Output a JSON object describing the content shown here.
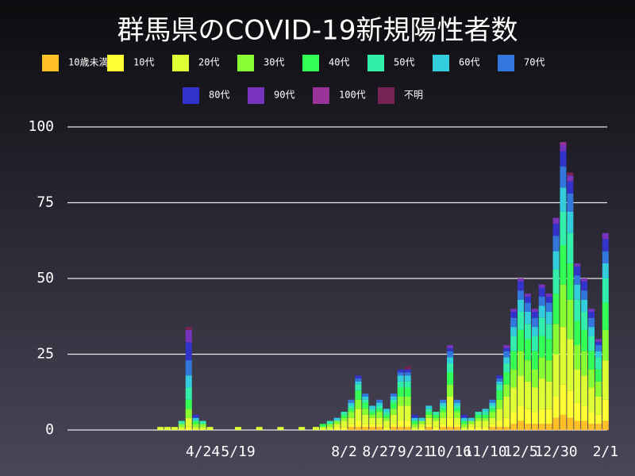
{
  "chart_data": {
    "type": "stacked_bar",
    "title": "群馬県のCOVID-19新規陽性者数",
    "categories": [
      null,
      null,
      null,
      null,
      null,
      null,
      null,
      null,
      null,
      "4/24",
      null,
      null,
      null,
      null,
      "5/19",
      null,
      null,
      null,
      null,
      null,
      null,
      null,
      null,
      null,
      null,
      null,
      null,
      null,
      null,
      "8/2",
      null,
      null,
      null,
      null,
      "8/27",
      null,
      null,
      null,
      null,
      "9/21",
      null,
      null,
      null,
      null,
      "10/16",
      null,
      null,
      null,
      null,
      "11/10",
      null,
      null,
      null,
      null,
      "12/5",
      null,
      null,
      null,
      null,
      "12/30",
      null,
      null,
      null,
      null,
      null,
      null,
      "2/1"
    ],
    "ylim": [
      0,
      100
    ],
    "yticks": [
      0,
      25,
      50,
      75,
      100
    ],
    "grid": true,
    "series": [
      {
        "name": "10歳未満",
        "color": "#ffbf26",
        "values": [
          0,
          0,
          0,
          0,
          0,
          0,
          0,
          0,
          0,
          0,
          0,
          0,
          0,
          0,
          0,
          0,
          0,
          0,
          0,
          0,
          0,
          0,
          0,
          0,
          0,
          0,
          0,
          0,
          0,
          0,
          1,
          1,
          1,
          1,
          1,
          0,
          1,
          1,
          1,
          0,
          0,
          1,
          0,
          1,
          1,
          1,
          0,
          0,
          0,
          0,
          1,
          1,
          1,
          2,
          3,
          2,
          2,
          2,
          2,
          4,
          5,
          4,
          3,
          3,
          2,
          2,
          3
        ]
      },
      {
        "name": "10代",
        "color": "#ffff33",
        "values": [
          0,
          0,
          0,
          0,
          0,
          0,
          0,
          1,
          0,
          0,
          0,
          0,
          0,
          0,
          0,
          0,
          0,
          0,
          0,
          0,
          0,
          0,
          0,
          0,
          0,
          0,
          0,
          0,
          1,
          1,
          1,
          2,
          1,
          1,
          1,
          1,
          1,
          2,
          2,
          0,
          1,
          1,
          1,
          1,
          3,
          1,
          0,
          1,
          1,
          1,
          1,
          2,
          3,
          4,
          5,
          5,
          4,
          5,
          5,
          7,
          10,
          9,
          6,
          5,
          4,
          3,
          7
        ]
      },
      {
        "name": "20代",
        "color": "#ddff33",
        "values": [
          0,
          0,
          0,
          1,
          1,
          1,
          1,
          3,
          1,
          1,
          1,
          0,
          0,
          0,
          1,
          0,
          0,
          1,
          0,
          0,
          1,
          0,
          0,
          1,
          0,
          1,
          1,
          1,
          1,
          2,
          2,
          4,
          3,
          2,
          2,
          2,
          3,
          5,
          5,
          1,
          1,
          2,
          2,
          2,
          7,
          2,
          1,
          1,
          2,
          2,
          2,
          4,
          7,
          8,
          10,
          9,
          8,
          10,
          9,
          14,
          19,
          17,
          11,
          10,
          8,
          6,
          13
        ]
      },
      {
        "name": "30代",
        "color": "#88ff33",
        "values": [
          0,
          0,
          0,
          0,
          0,
          0,
          1,
          3,
          1,
          1,
          0,
          0,
          0,
          0,
          0,
          0,
          0,
          0,
          0,
          0,
          0,
          0,
          0,
          0,
          0,
          0,
          0,
          1,
          1,
          1,
          2,
          3,
          2,
          1,
          2,
          1,
          2,
          3,
          3,
          1,
          1,
          1,
          1,
          2,
          4,
          2,
          1,
          1,
          1,
          1,
          2,
          3,
          4,
          6,
          8,
          7,
          6,
          7,
          7,
          10,
          14,
          13,
          8,
          8,
          6,
          5,
          10
        ]
      },
      {
        "name": "40代",
        "color": "#33ff55",
        "values": [
          0,
          0,
          0,
          0,
          0,
          0,
          0,
          3,
          1,
          0,
          0,
          0,
          0,
          0,
          0,
          0,
          0,
          0,
          0,
          0,
          0,
          0,
          0,
          0,
          0,
          0,
          1,
          0,
          0,
          1,
          1,
          3,
          2,
          1,
          1,
          1,
          2,
          3,
          3,
          1,
          0,
          1,
          1,
          1,
          4,
          1,
          1,
          0,
          1,
          1,
          1,
          3,
          4,
          6,
          7,
          7,
          6,
          7,
          7,
          10,
          13,
          12,
          8,
          7,
          6,
          4,
          9
        ]
      },
      {
        "name": "50代",
        "color": "#33eeaa",
        "values": [
          0,
          0,
          0,
          0,
          0,
          0,
          1,
          4,
          0,
          1,
          0,
          0,
          0,
          0,
          0,
          0,
          0,
          0,
          0,
          0,
          0,
          0,
          0,
          0,
          0,
          0,
          0,
          1,
          0,
          1,
          1,
          2,
          1,
          1,
          1,
          1,
          1,
          2,
          2,
          0,
          0,
          1,
          1,
          1,
          3,
          1,
          0,
          0,
          1,
          1,
          1,
          2,
          3,
          5,
          6,
          5,
          5,
          6,
          5,
          8,
          11,
          10,
          7,
          6,
          5,
          4,
          8
        ]
      },
      {
        "name": "60代",
        "color": "#33ccdd",
        "values": [
          0,
          0,
          0,
          0,
          0,
          0,
          0,
          4,
          1,
          0,
          0,
          0,
          0,
          0,
          0,
          0,
          0,
          0,
          0,
          0,
          0,
          0,
          0,
          0,
          0,
          0,
          0,
          0,
          1,
          0,
          1,
          1,
          1,
          1,
          1,
          1,
          1,
          2,
          2,
          1,
          1,
          1,
          0,
          1,
          2,
          1,
          1,
          1,
          0,
          1,
          1,
          1,
          2,
          3,
          4,
          4,
          3,
          4,
          4,
          6,
          8,
          7,
          5,
          4,
          3,
          2,
          5
        ]
      },
      {
        "name": "70代",
        "color": "#3377dd",
        "values": [
          0,
          0,
          0,
          0,
          0,
          0,
          0,
          5,
          0,
          0,
          0,
          0,
          0,
          0,
          0,
          0,
          0,
          0,
          0,
          0,
          0,
          0,
          0,
          0,
          0,
          0,
          0,
          0,
          0,
          0,
          1,
          1,
          1,
          0,
          1,
          0,
          1,
          1,
          1,
          0,
          0,
          0,
          0,
          1,
          2,
          1,
          0,
          0,
          0,
          0,
          1,
          1,
          2,
          3,
          3,
          3,
          3,
          3,
          3,
          5,
          7,
          6,
          3,
          3,
          3,
          2,
          4
        ]
      },
      {
        "name": "80代",
        "color": "#3333cc",
        "values": [
          0,
          0,
          0,
          0,
          0,
          0,
          0,
          6,
          1,
          0,
          0,
          0,
          0,
          0,
          0,
          0,
          0,
          0,
          0,
          0,
          0,
          0,
          0,
          0,
          0,
          0,
          0,
          0,
          0,
          0,
          0,
          1,
          0,
          0,
          0,
          0,
          0,
          1,
          1,
          1,
          0,
          0,
          0,
          0,
          1,
          0,
          1,
          0,
          0,
          0,
          0,
          1,
          1,
          2,
          3,
          2,
          2,
          3,
          2,
          4,
          5,
          4,
          3,
          3,
          2,
          1,
          4
        ]
      },
      {
        "name": "90代",
        "color": "#7733bb",
        "values": [
          0,
          0,
          0,
          0,
          0,
          0,
          0,
          4,
          0,
          0,
          0,
          0,
          0,
          0,
          0,
          0,
          0,
          0,
          0,
          0,
          0,
          0,
          0,
          0,
          0,
          0,
          0,
          0,
          0,
          0,
          0,
          0,
          0,
          0,
          0,
          0,
          0,
          0,
          0,
          0,
          0,
          0,
          0,
          0,
          1,
          0,
          0,
          0,
          0,
          0,
          0,
          0,
          1,
          1,
          1,
          1,
          1,
          1,
          1,
          2,
          2,
          2,
          1,
          1,
          1,
          1,
          2
        ]
      },
      {
        "name": "100代",
        "color": "#993399",
        "values": [
          0,
          0,
          0,
          0,
          0,
          0,
          0,
          0,
          0,
          0,
          0,
          0,
          0,
          0,
          0,
          0,
          0,
          0,
          0,
          0,
          0,
          0,
          0,
          0,
          0,
          0,
          0,
          0,
          0,
          0,
          0,
          0,
          0,
          0,
          0,
          0,
          0,
          0,
          0,
          0,
          0,
          0,
          0,
          0,
          0,
          0,
          0,
          0,
          0,
          0,
          0,
          0,
          0,
          0,
          0,
          0,
          0,
          0,
          0,
          0,
          1,
          0,
          0,
          0,
          0,
          0,
          0
        ]
      },
      {
        "name": "不明",
        "color": "#772255",
        "values": [
          0,
          0,
          0,
          0,
          0,
          0,
          0,
          1,
          0,
          0,
          0,
          0,
          0,
          0,
          0,
          0,
          0,
          0,
          0,
          0,
          0,
          0,
          0,
          0,
          0,
          0,
          0,
          0,
          0,
          0,
          0,
          0,
          0,
          0,
          0,
          0,
          0,
          0,
          1,
          0,
          0,
          0,
          0,
          0,
          0,
          0,
          0,
          0,
          0,
          0,
          0,
          0,
          0,
          0,
          0,
          0,
          0,
          0,
          0,
          0,
          0,
          1,
          0,
          0,
          0,
          0,
          0
        ]
      }
    ]
  }
}
